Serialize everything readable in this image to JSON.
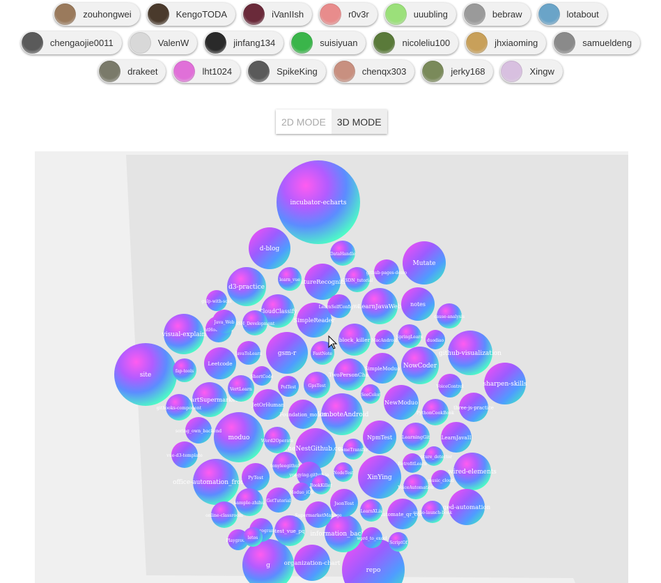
{
  "users": [
    [
      {
        "name": "zouhongwei",
        "color": "#9a7a5c"
      },
      {
        "name": "KengoTODA",
        "color": "#4a3a2c"
      },
      {
        "name": "iVanIIsh",
        "color": "#6a2a3a"
      },
      {
        "name": "r0v3r",
        "color": "#e88c8c"
      },
      {
        "name": "uuubling",
        "color": "#9be07a"
      },
      {
        "name": "bebraw",
        "color": "#9a9a9a"
      },
      {
        "name": "lotabout",
        "color": "#6aa4c8"
      }
    ],
    [
      {
        "name": "chengaojie0011",
        "color": "#5a5a5a"
      },
      {
        "name": "ValenW",
        "color": "#d8d8d8"
      },
      {
        "name": "jinfang134",
        "color": "#2a2a2a"
      },
      {
        "name": "suisiyuan",
        "color": "#3ab54a"
      },
      {
        "name": "nicoleliu100",
        "color": "#5a7a3a"
      },
      {
        "name": "jhxiaoming",
        "color": "#c8a05a"
      },
      {
        "name": "samueldeng",
        "color": "#8a8a8a"
      }
    ],
    [
      {
        "name": "drakeet",
        "color": "#7a7a6a"
      },
      {
        "name": "lht1024",
        "color": "#e070d8"
      },
      {
        "name": "SpikeKing",
        "color": "#5a5a5a"
      },
      {
        "name": "chenqx303",
        "color": "#c89080"
      },
      {
        "name": "jerky168",
        "color": "#7a8a5a"
      },
      {
        "name": "Xingw",
        "color": "#d8c0e0"
      }
    ]
  ],
  "mode": {
    "options": [
      "2D MODE",
      "3D MODE"
    ],
    "selected": "3D MODE"
  },
  "repos": [
    {
      "name": "incubator-echarts",
      "r": 60
    },
    {
      "name": "d-blog",
      "r": 30
    },
    {
      "name": "DataHandle",
      "r": 18
    },
    {
      "name": "Mutate",
      "r": 31
    },
    {
      "name": "learn_vue",
      "r": 17
    },
    {
      "name": "GestureRecognition",
      "r": 26
    },
    {
      "name": "CSDN_tutorial",
      "r": 18
    },
    {
      "name": "github-pages-demo",
      "r": 18
    },
    {
      "name": "d3-practice",
      "r": 28
    },
    {
      "name": "gulp-with-scss",
      "r": 15
    },
    {
      "name": "CloudClassify",
      "r": 24
    },
    {
      "name": "LearnSelfConfigWe",
      "r": 17
    },
    {
      "name": "LearnJavaWeb",
      "r": 26
    },
    {
      "name": "notes",
      "r": 24
    },
    {
      "name": "cause-analysis",
      "r": 18
    },
    {
      "name": "Java_Web",
      "r": 17
    },
    {
      "name": "SSH_Development",
      "r": 18
    },
    {
      "name": "SimpleReader",
      "r": 25
    },
    {
      "name": "visual-explain",
      "r": 29
    },
    {
      "name": "atHouse-tool",
      "r": 19
    },
    {
      "name": "block_killer",
      "r": 23
    },
    {
      "name": "MacAndroid",
      "r": 14
    },
    {
      "name": "SpringLearn",
      "r": 17
    },
    {
      "name": "duodiao",
      "r": 14
    },
    {
      "name": "github-visualization",
      "r": 32
    },
    {
      "name": "JavaToLearn",
      "r": 17
    },
    {
      "name": "site",
      "r": 45
    },
    {
      "name": "gsm-r",
      "r": 30
    },
    {
      "name": "FastNote",
      "r": 17
    },
    {
      "name": "Leetcode",
      "r": 23
    },
    {
      "name": "fap-tools",
      "r": 17
    },
    {
      "name": "ShortCode",
      "r": 14
    },
    {
      "name": "TwoPersonChat",
      "r": 23
    },
    {
      "name": "SimpleModuo",
      "r": 22
    },
    {
      "name": "NowCoder",
      "r": 27
    },
    {
      "name": "sharpen-skills",
      "r": 30
    },
    {
      "name": "VertLearn",
      "r": 19
    },
    {
      "name": "PolTest",
      "r": 15
    },
    {
      "name": "GpsTest",
      "r": 19
    },
    {
      "name": "VoiceControl",
      "r": 17
    },
    {
      "name": "SmartSupermarket",
      "r": 25
    },
    {
      "name": "JetOrHuman",
      "r": 22
    },
    {
      "name": "SeeColor",
      "r": 14
    },
    {
      "name": "NewModuo",
      "r": 25
    },
    {
      "name": "PythonCookBook",
      "r": 19
    },
    {
      "name": "three-js-practice",
      "r": 21
    },
    {
      "name": "githooks-component",
      "r": 19
    },
    {
      "name": "Foundation_mombi",
      "r": 21
    },
    {
      "name": "ZomboteAndroid",
      "r": 30
    },
    {
      "name": "soring_own_backend",
      "r": 19
    },
    {
      "name": "moduo",
      "r": 36
    },
    {
      "name": "NpmTest",
      "r": 24
    },
    {
      "name": "LearningGit",
      "r": 20
    },
    {
      "name": "LearnJavaII",
      "r": 22
    },
    {
      "name": "Word2Operate",
      "r": 19
    },
    {
      "name": "vue-d3-template",
      "r": 19
    },
    {
      "name": "SomeTransfer",
      "r": 15
    },
    {
      "name": "TheNestGithub.com",
      "r": 29
    },
    {
      "name": "capture_detector",
      "r": 14
    },
    {
      "name": "RetrofitLearn",
      "r": 14
    },
    {
      "name": "office-automation_frontend",
      "r": 33
    },
    {
      "name": "PyTest",
      "r": 20
    },
    {
      "name": "tonyleegithub",
      "r": 19
    },
    {
      "name": "yongying.github.io",
      "r": 18
    },
    {
      "name": "NodeTest",
      "r": 14
    },
    {
      "name": "XinYing",
      "r": 31
    },
    {
      "name": "wired-elements",
      "r": 27
    },
    {
      "name": "music_cloud",
      "r": 14
    },
    {
      "name": "VoiceAutomation",
      "r": 18
    },
    {
      "name": "Moduo_iOS",
      "r": 13
    },
    {
      "name": "BookKiller",
      "r": 14
    },
    {
      "name": "GetTutorial",
      "r": 18
    },
    {
      "name": "sample-zhihu",
      "r": 20
    },
    {
      "name": "JsonTest",
      "r": 20
    },
    {
      "name": "online-classroom",
      "r": 19
    },
    {
      "name": "SupermarketManage",
      "r": 19
    },
    {
      "name": "LearnXLis",
      "r": 16
    },
    {
      "name": "Automate_qr_code",
      "r": 22
    },
    {
      "name": "audio-launch-book",
      "r": 16
    },
    {
      "name": "ged-automation",
      "r": 26
    },
    {
      "name": "test_vue_pq",
      "r": 22
    },
    {
      "name": "test-program",
      "r": 17
    },
    {
      "name": "letos",
      "r": 14
    },
    {
      "name": "Playground",
      "r": 15
    },
    {
      "name": "information_backend",
      "r": 27
    },
    {
      "name": "word_to_excel",
      "r": 15
    },
    {
      "name": "ScriptOf",
      "r": 14
    },
    {
      "name": "organization-chart",
      "r": 26
    },
    {
      "name": "g",
      "r": 37
    },
    {
      "name": "repo",
      "r": 45
    }
  ]
}
